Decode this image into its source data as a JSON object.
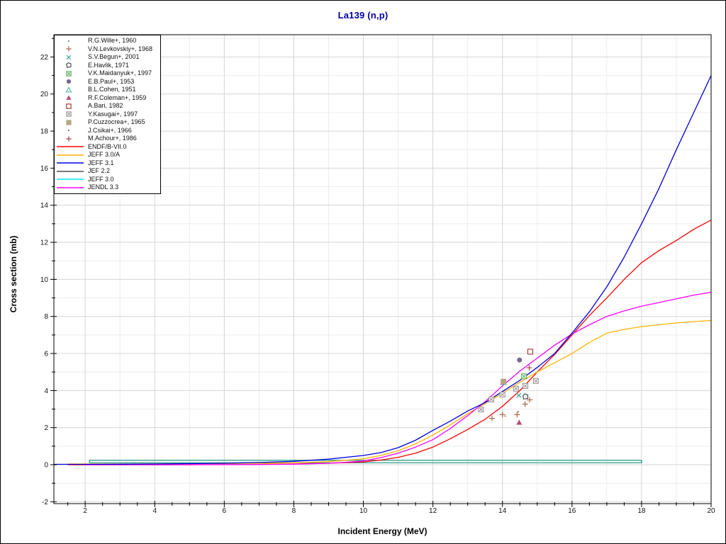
{
  "window": {
    "title": "La139 (n,p)",
    "title_color": "#0000a0"
  },
  "chart_data": {
    "type": "line",
    "title": "La139 (n,p)",
    "xlabel": "Incident Energy (MeV)",
    "ylabel": "Cross section (mb)",
    "xlim": [
      1.1,
      20
    ],
    "ylim": [
      -2.1,
      23.2
    ],
    "x_major_ticks": [
      2,
      4,
      6,
      8,
      10,
      12,
      14,
      16,
      18,
      20
    ],
    "x_minor_step": 0.5,
    "y_major_ticks": [
      -2,
      0,
      2,
      4,
      6,
      8,
      10,
      12,
      14,
      16,
      18,
      20,
      22
    ],
    "y_minor_step": 1,
    "grid": {
      "major_color": "#d4d4d4",
      "minor_color": "#ececec",
      "on": true
    },
    "legend_position": "top-left",
    "curves": [
      {
        "name": "JEF 2.2",
        "color": "#4d4d4d",
        "plot_color": "#2fa08c",
        "points": [
          [
            2.12,
            0.1
          ],
          [
            2.12,
            0.24
          ],
          [
            18,
            0.24
          ],
          [
            18,
            0.1
          ]
        ]
      },
      {
        "name": "JEFF 3.0",
        "color": "#00e8e8",
        "plot_color": "#2fa08c",
        "points": [
          [
            2.12,
            0.1
          ],
          [
            18,
            0.1
          ],
          [
            18,
            0.24
          ]
        ]
      },
      {
        "name": "ENDF/B-VII.0",
        "color": "#ff0000",
        "points": [
          [
            1.5,
            0
          ],
          [
            5,
            0
          ],
          [
            7,
            0.02
          ],
          [
            8,
            0.04
          ],
          [
            9,
            0.08
          ],
          [
            10,
            0.15
          ],
          [
            10.5,
            0.25
          ],
          [
            11,
            0.4
          ],
          [
            11.5,
            0.62
          ],
          [
            12,
            0.95
          ],
          [
            12.5,
            1.4
          ],
          [
            13,
            1.9
          ],
          [
            13.5,
            2.45
          ],
          [
            14,
            3.15
          ],
          [
            14.5,
            4.0
          ],
          [
            15,
            5.0
          ],
          [
            15.5,
            5.95
          ],
          [
            16,
            7.0
          ],
          [
            16.5,
            8.05
          ],
          [
            17,
            9.0
          ],
          [
            17.5,
            10.0
          ],
          [
            18,
            10.9
          ],
          [
            18.5,
            11.55
          ],
          [
            19,
            12.1
          ],
          [
            19.5,
            12.7
          ],
          [
            20,
            13.2
          ]
        ]
      },
      {
        "name": "JEFF 3.0/A",
        "color": "#ffb400",
        "points": [
          [
            1.5,
            0.04
          ],
          [
            3,
            0.04
          ],
          [
            5,
            0.05
          ],
          [
            7,
            0.08
          ],
          [
            8,
            0.1
          ],
          [
            9,
            0.17
          ],
          [
            10,
            0.32
          ],
          [
            10.5,
            0.5
          ],
          [
            11,
            0.75
          ],
          [
            11.5,
            1.12
          ],
          [
            12,
            1.6
          ],
          [
            12.5,
            2.15
          ],
          [
            13,
            2.75
          ],
          [
            13.5,
            3.3
          ],
          [
            14,
            3.85
          ],
          [
            14.5,
            4.45
          ],
          [
            15,
            5.0
          ],
          [
            15.5,
            5.5
          ],
          [
            16,
            6.0
          ],
          [
            16.5,
            6.6
          ],
          [
            17,
            7.1
          ],
          [
            17.5,
            7.3
          ],
          [
            18,
            7.45
          ],
          [
            18.5,
            7.55
          ],
          [
            19,
            7.65
          ],
          [
            19.5,
            7.72
          ],
          [
            20,
            7.78
          ]
        ]
      },
      {
        "name": "JENDL 3.3",
        "color": "#ff00ff",
        "points": [
          [
            2,
            0
          ],
          [
            7,
            0.01
          ],
          [
            8,
            0.03
          ],
          [
            9,
            0.08
          ],
          [
            9.5,
            0.13
          ],
          [
            10,
            0.2
          ],
          [
            10.5,
            0.38
          ],
          [
            11,
            0.62
          ],
          [
            11.5,
            0.95
          ],
          [
            12,
            1.35
          ],
          [
            12.5,
            1.95
          ],
          [
            13,
            2.65
          ],
          [
            13.5,
            3.4
          ],
          [
            14,
            4.25
          ],
          [
            14.5,
            5.05
          ],
          [
            15,
            5.75
          ],
          [
            15.5,
            6.45
          ],
          [
            16,
            7.05
          ],
          [
            16.5,
            7.55
          ],
          [
            17,
            8.0
          ],
          [
            17.5,
            8.3
          ],
          [
            18,
            8.55
          ],
          [
            18.5,
            8.75
          ],
          [
            19,
            8.95
          ],
          [
            19.5,
            9.15
          ],
          [
            20,
            9.3
          ]
        ]
      },
      {
        "name": "JEFF 3.1",
        "color": "#0000dd",
        "points": [
          [
            1.1,
            0.02
          ],
          [
            2,
            0.02
          ],
          [
            3,
            0.03
          ],
          [
            4,
            0.04
          ],
          [
            5,
            0.06
          ],
          [
            6,
            0.08
          ],
          [
            7,
            0.12
          ],
          [
            8,
            0.18
          ],
          [
            9,
            0.3
          ],
          [
            10,
            0.5
          ],
          [
            10.5,
            0.65
          ],
          [
            11,
            0.92
          ],
          [
            11.5,
            1.32
          ],
          [
            12,
            1.85
          ],
          [
            12.5,
            2.35
          ],
          [
            13,
            2.9
          ],
          [
            13.5,
            3.35
          ],
          [
            14,
            3.95
          ],
          [
            14.5,
            4.55
          ],
          [
            15,
            5.25
          ],
          [
            15.5,
            6.0
          ],
          [
            16,
            7.1
          ],
          [
            16.5,
            8.25
          ],
          [
            17,
            9.6
          ],
          [
            17.5,
            11.2
          ],
          [
            18,
            13.0
          ],
          [
            18.5,
            14.9
          ],
          [
            19,
            17.0
          ],
          [
            19.5,
            19.0
          ],
          [
            20,
            21.0
          ]
        ]
      }
    ],
    "datasets": [
      {
        "name": "R.G.Wille+, 1960",
        "marker": "dot",
        "color": "#909090",
        "points": [
          [
            14.08,
            2.62
          ]
        ]
      },
      {
        "name": "V.N.Levkovskiy+, 1968",
        "marker": "plus",
        "color": "#ad6a4a",
        "points": [
          [
            13.7,
            2.5
          ],
          [
            14.0,
            2.7
          ],
          [
            14.42,
            2.7
          ],
          [
            14.65,
            3.27
          ],
          [
            14.78,
            3.5
          ]
        ]
      },
      {
        "name": "S.V.Begun+, 2001",
        "marker": "x",
        "color": "#2fa49a",
        "points": [
          [
            14.47,
            3.74
          ]
        ]
      },
      {
        "name": "B.L.Cohen, 1951",
        "marker": "open-triangle",
        "color": "#44b59a",
        "points": [
          [
            14.03,
            4.45
          ]
        ]
      },
      {
        "name": "E.Havlik, 1971",
        "marker": "open-pentagon",
        "color": "#3a3a3a",
        "points": [
          [
            14.66,
            3.68
          ]
        ]
      },
      {
        "name": "V.K.Maidanyuk+, 1997",
        "marker": "crossed-square",
        "color": "#4ea34e",
        "points": [
          [
            14.62,
            4.77
          ]
        ]
      },
      {
        "name": "E.B.Paul+, 1953",
        "marker": "filled-circle",
        "color": "#77688c",
        "points": [
          [
            14.49,
            5.65
          ]
        ]
      },
      {
        "name": "R.F.Coleman+, 1959",
        "marker": "filled-triangle",
        "color": "#b34f72",
        "points": [
          [
            14.48,
            2.28
          ]
        ]
      },
      {
        "name": "A.Bari, 1982",
        "marker": "open-square",
        "color": "#a83c3c",
        "points": [
          [
            14.8,
            6.1
          ]
        ]
      },
      {
        "name": "Y.Kasugai+, 1997",
        "marker": "crossed-square",
        "color": "#988b8b",
        "points": [
          [
            13.38,
            2.98
          ],
          [
            13.68,
            3.52
          ],
          [
            14.0,
            3.78
          ],
          [
            14.39,
            4.1
          ],
          [
            14.66,
            4.25
          ],
          [
            14.96,
            4.52
          ]
        ]
      },
      {
        "name": "P.Cuzzocrea+, 1965",
        "marker": "filled-square",
        "color": "#b5a584",
        "points": [
          [
            14.03,
            4.48
          ]
        ]
      },
      {
        "name": "J.Csikai+, 1966",
        "marker": "dot",
        "color": "#8a7a6a",
        "points": [
          [
            14.45,
            2.86
          ]
        ]
      },
      {
        "name": "M.Achour+, 1986",
        "marker": "plus",
        "color": "#9b4a43",
        "points": [
          [
            14.77,
            5.23
          ]
        ]
      }
    ]
  },
  "legend": {
    "entries": [
      {
        "label": "R.G.Wille+, 1960",
        "type": "marker",
        "marker": "dot",
        "color": "#909090"
      },
      {
        "label": "V.N.Levkovskiy+, 1968",
        "type": "marker",
        "marker": "plus",
        "color": "#ad6a4a"
      },
      {
        "label": "S.V.Begun+, 2001",
        "type": "marker",
        "marker": "x",
        "color": "#2fa49a"
      },
      {
        "label": "E.Havlik, 1971",
        "type": "marker",
        "marker": "open-pentagon",
        "color": "#3a3a3a"
      },
      {
        "label": "V.K.Maidanyuk+, 1997",
        "type": "marker",
        "marker": "crossed-square",
        "color": "#4ea34e"
      },
      {
        "label": "E.B.Paul+, 1953",
        "type": "marker",
        "marker": "filled-circle",
        "color": "#77688c"
      },
      {
        "label": "B.L.Cohen, 1951",
        "type": "marker",
        "marker": "open-triangle",
        "color": "#44b59a"
      },
      {
        "label": "R.F.Coleman+, 1959",
        "type": "marker",
        "marker": "filled-triangle",
        "color": "#b34f72"
      },
      {
        "label": "A.Bari, 1982",
        "type": "marker",
        "marker": "open-square",
        "color": "#a83c3c"
      },
      {
        "label": "Y.Kasugai+, 1997",
        "type": "marker",
        "marker": "crossed-square",
        "color": "#988b8b"
      },
      {
        "label": "P.Cuzzocrea+, 1965",
        "type": "marker",
        "marker": "filled-square",
        "color": "#b5a584"
      },
      {
        "label": "J.Csikai+, 1966",
        "type": "marker",
        "marker": "dot",
        "color": "#8a7a6a"
      },
      {
        "label": "M.Achour+, 1986",
        "type": "marker",
        "marker": "plus",
        "color": "#9b4a43"
      },
      {
        "label": "ENDF/B-VII.0",
        "type": "line",
        "color": "#ff0000"
      },
      {
        "label": "JEFF 3.0/A",
        "type": "line",
        "color": "#ffb400"
      },
      {
        "label": "JEFF 3.1",
        "type": "line",
        "color": "#0000dd"
      },
      {
        "label": "JEF 2.2",
        "type": "line",
        "color": "#4d4d4d"
      },
      {
        "label": "JEFF 3.0",
        "type": "line",
        "color": "#00e8e8"
      },
      {
        "label": "JENDL 3.3",
        "type": "line",
        "color": "#ff00ff"
      }
    ]
  }
}
